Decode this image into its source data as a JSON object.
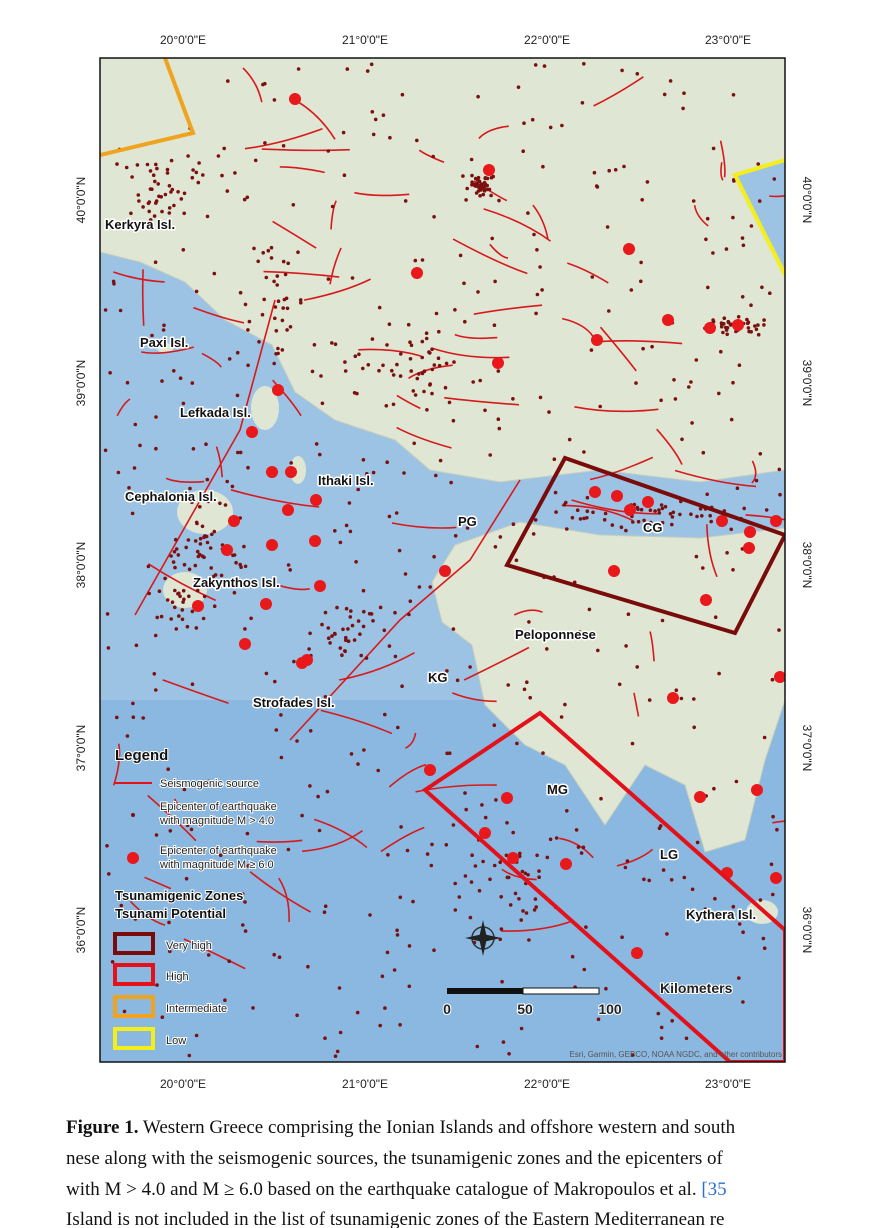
{
  "map": {
    "lon_labels": [
      "20°0'0\"E",
      "21°0'0\"E",
      "22°0'0\"E",
      "23°0'0\"E"
    ],
    "lat_labels": [
      "40°0'0\"N",
      "39°0'0\"N",
      "38°0'0\"N",
      "37°0'0\"N",
      "36°0'0\"N"
    ],
    "places": [
      "Kerkyra Isl.",
      "Paxi Isl.",
      "Lefkada Isl.",
      "Ithaki Isl.",
      "Cephalonia Isl.",
      "PG",
      "CG",
      "Zakynthos Isl.",
      "Peloponnese",
      "KG",
      "Strofades Isl.",
      "MG",
      "LG",
      "Kythera Isl."
    ],
    "legend": {
      "title": "Legend",
      "items": [
        "Seismogenic source",
        "Epicenter of earthquake",
        "with magnitude M > 4.0",
        "Epicenter of earthquake",
        "with magnitude M ≥ 6.0"
      ],
      "zones_title": "Tsunamigenic Zones",
      "zones_subtitle": "Tsunami Potential",
      "zones": [
        "Very high",
        "High",
        "Intermediate",
        "Low"
      ]
    },
    "scale": {
      "ticks": [
        "0",
        "50",
        "100"
      ],
      "unit": "Kilometers"
    },
    "attribution": "Esri, Garmin, GEBCO, NOAA NGDC, and other contributors"
  },
  "caption": {
    "label": "Figure 1.",
    "lines": [
      "Western Greece comprising the Ionian Islands and offshore western and south",
      "nese along with the seismogenic sources, the tsunamigenic zones and the epicenters of",
      "with M > 4.0 and M ≥ 6.0 based on the earthquake catalogue of Makropoulos et al.",
      "Island is not included in the list of tsunamigenic zones of the Eastern Mediterranean re"
    ],
    "ref": "[35"
  }
}
